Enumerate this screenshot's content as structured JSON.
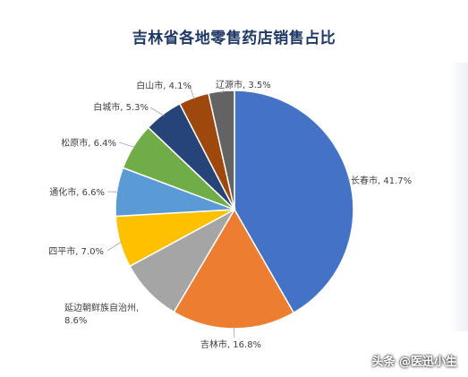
{
  "chart_data": {
    "type": "pie",
    "title": "吉林省各地零售药店销售占比",
    "slices": [
      {
        "name": "长春市",
        "value": 41.7,
        "label": "长春市, 41.7%",
        "color": "#4472c4"
      },
      {
        "name": "吉林市",
        "value": 16.8,
        "label": "吉林市, 16.8%",
        "color": "#ed7d31"
      },
      {
        "name": "延边朝鲜族自治州",
        "value": 8.6,
        "label": "延边朝鲜族自治州,\n8.6%",
        "color": "#a5a5a5"
      },
      {
        "name": "四平市",
        "value": 7.0,
        "label": "四平市, 7.0%",
        "color": "#ffc000"
      },
      {
        "name": "通化市",
        "value": 6.6,
        "label": "通化市, 6.6%",
        "color": "#5b9bd5"
      },
      {
        "name": "松原市",
        "value": 6.4,
        "label": "松原市, 6.4%",
        "color": "#70ad47"
      },
      {
        "name": "白城市",
        "value": 5.3,
        "label": "白城市, 5.3%",
        "color": "#264478"
      },
      {
        "name": "白山市",
        "value": 4.1,
        "label": "白山市, 4.1%",
        "color": "#9e480e"
      },
      {
        "name": "辽源市",
        "value": 3.5,
        "label": "辽源市, 3.5%",
        "color": "#636363"
      }
    ]
  },
  "watermark": "头条 @医迅小生"
}
